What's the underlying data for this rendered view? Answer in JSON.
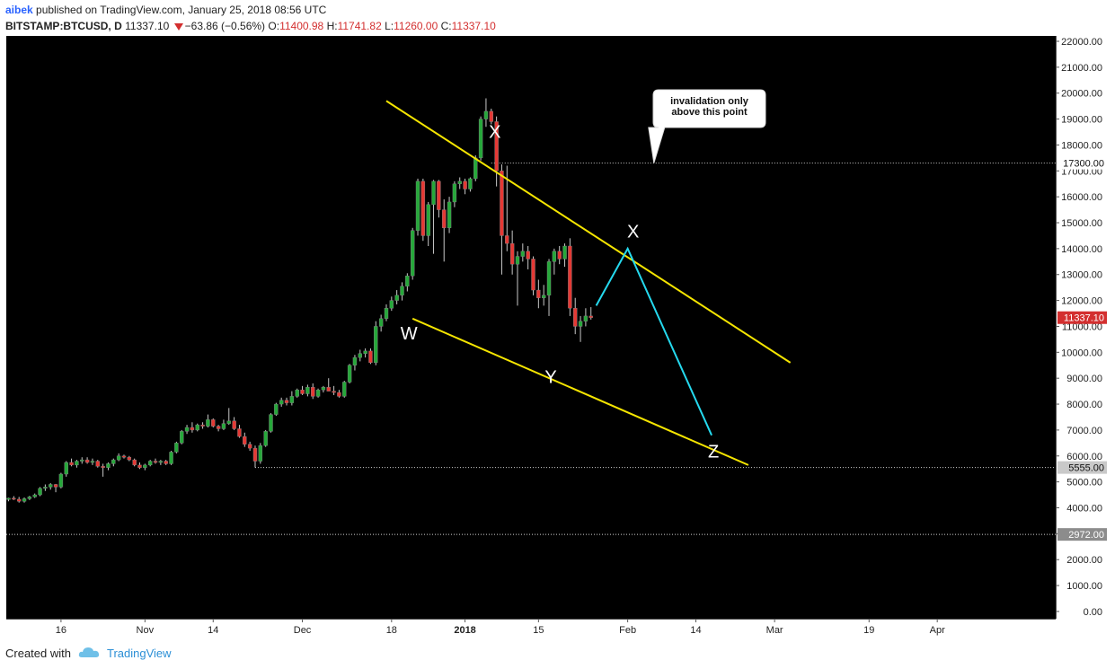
{
  "header": {
    "author": "aibek",
    "published": "published on TradingView.com, January 25, 2018 08:56 UTC",
    "symbol": "BITSTAMP:BTCUSD, D",
    "last": "11337.10",
    "change": "−63.86 (−0.56%)",
    "o_label": "O:",
    "o_val": "11400.98",
    "h_label": "H:",
    "h_val": "11741.82",
    "l_label": "L:",
    "l_val": "11260.00",
    "c_label": "C:",
    "c_val": "11337.10"
  },
  "footer": {
    "created_with": "Created with",
    "brand": "TradingView"
  },
  "colors": {
    "bg": "#000000",
    "up": "#26a83a",
    "down": "#e53935",
    "trend": "#f5e500",
    "projection": "#25d9ee",
    "price_badge": "#d32f2f"
  },
  "chart_data": {
    "type": "candlestick",
    "symbol": "BITSTAMP:BTCUSD",
    "interval": "D",
    "y_ticks": [
      0,
      1000,
      2000,
      3000,
      4000,
      5000,
      6000,
      7000,
      8000,
      9000,
      10000,
      11000,
      12000,
      13000,
      14000,
      15000,
      16000,
      17000,
      18000,
      19000,
      20000,
      21000,
      22000
    ],
    "y_tick_labels": [
      "0.00",
      "1000.00",
      "2000.00",
      "3000.00",
      "4000.00",
      "5000.00",
      "6000.00",
      "7000.00",
      "8000.00",
      "9000.00",
      "10000.00",
      "11000.00",
      "12000.00",
      "13000.00",
      "14000.00",
      "15000.00",
      "16000.00",
      "17000.00",
      "18000.00",
      "19000.00",
      "20000.00",
      "21000.00",
      "22000.00"
    ],
    "ylim": [
      0,
      22000
    ],
    "x_ticks": [
      {
        "label": "16",
        "date": "2017-10-16"
      },
      {
        "label": "Nov",
        "date": "2017-11-01"
      },
      {
        "label": "14",
        "date": "2017-11-14"
      },
      {
        "label": "Dec",
        "date": "2017-12-01"
      },
      {
        "label": "18",
        "date": "2017-12-18"
      },
      {
        "label": "2018",
        "date": "2018-01-01"
      },
      {
        "label": "15",
        "date": "2018-01-15"
      },
      {
        "label": "Feb",
        "date": "2018-02-01"
      },
      {
        "label": "14",
        "date": "2018-02-14"
      },
      {
        "label": "Mar",
        "date": "2018-03-01"
      },
      {
        "label": "19",
        "date": "2018-03-19"
      },
      {
        "label": "Apr",
        "date": "2018-04-01"
      }
    ],
    "candles": [
      [
        "2017-10-06",
        4320,
        4390,
        4250,
        4370
      ],
      [
        "2017-10-07",
        4370,
        4450,
        4300,
        4330
      ],
      [
        "2017-10-08",
        4330,
        4420,
        4200,
        4250
      ],
      [
        "2017-10-09",
        4250,
        4400,
        4200,
        4350
      ],
      [
        "2017-10-10",
        4350,
        4460,
        4300,
        4420
      ],
      [
        "2017-10-11",
        4420,
        4550,
        4380,
        4500
      ],
      [
        "2017-10-12",
        4500,
        4800,
        4450,
        4750
      ],
      [
        "2017-10-13",
        4750,
        4900,
        4650,
        4800
      ],
      [
        "2017-10-14",
        4800,
        4950,
        4700,
        4900
      ],
      [
        "2017-10-15",
        4900,
        4920,
        4600,
        4800
      ],
      [
        "2017-10-16",
        4800,
        5350,
        4750,
        5300
      ],
      [
        "2017-10-17",
        5300,
        5800,
        5200,
        5750
      ],
      [
        "2017-10-18",
        5750,
        5900,
        5600,
        5650
      ],
      [
        "2017-10-19",
        5650,
        5850,
        5550,
        5800
      ],
      [
        "2017-10-20",
        5800,
        5950,
        5700,
        5850
      ],
      [
        "2017-10-21",
        5850,
        5950,
        5700,
        5750
      ],
      [
        "2017-10-22",
        5750,
        5900,
        5650,
        5800
      ],
      [
        "2017-10-23",
        5800,
        5850,
        5550,
        5600
      ],
      [
        "2017-10-24",
        5600,
        5700,
        5200,
        5550
      ],
      [
        "2017-10-25",
        5550,
        5750,
        5450,
        5700
      ],
      [
        "2017-10-26",
        5700,
        5900,
        5600,
        5850
      ],
      [
        "2017-10-27",
        5850,
        6100,
        5800,
        6000
      ],
      [
        "2017-10-28",
        6000,
        6050,
        5900,
        5950
      ],
      [
        "2017-10-29",
        5950,
        6000,
        5800,
        5850
      ],
      [
        "2017-10-30",
        5850,
        5900,
        5600,
        5650
      ],
      [
        "2017-10-31",
        5650,
        5750,
        5500,
        5550
      ],
      [
        "2017-11-01",
        5550,
        5700,
        5450,
        5650
      ],
      [
        "2017-11-02",
        5650,
        5850,
        5600,
        5800
      ],
      [
        "2017-11-03",
        5800,
        5900,
        5700,
        5750
      ],
      [
        "2017-11-04",
        5750,
        5850,
        5650,
        5800
      ],
      [
        "2017-11-05",
        5800,
        5850,
        5650,
        5700
      ],
      [
        "2017-11-06",
        5700,
        6200,
        5650,
        6150
      ],
      [
        "2017-11-07",
        6150,
        6550,
        6100,
        6500
      ],
      [
        "2017-11-08",
        6500,
        7000,
        6450,
        6950
      ],
      [
        "2017-11-09",
        6950,
        7200,
        6850,
        7100
      ],
      [
        "2017-11-10",
        7100,
        7300,
        6900,
        7000
      ],
      [
        "2017-11-11",
        7000,
        7250,
        6950,
        7200
      ],
      [
        "2017-11-12",
        7200,
        7300,
        7050,
        7150
      ],
      [
        "2017-11-13",
        7150,
        7600,
        7100,
        7400
      ],
      [
        "2017-11-14",
        7400,
        7450,
        7100,
        7150
      ],
      [
        "2017-11-15",
        7150,
        7200,
        6950,
        7050
      ],
      [
        "2017-11-16",
        7050,
        7400,
        7000,
        7250
      ],
      [
        "2017-11-17",
        7250,
        7850,
        7200,
        7350
      ],
      [
        "2017-11-18",
        7350,
        7500,
        7000,
        7050
      ],
      [
        "2017-11-19",
        7050,
        7200,
        6700,
        6750
      ],
      [
        "2017-11-20",
        6750,
        6900,
        6350,
        6450
      ],
      [
        "2017-11-21",
        6450,
        6550,
        6200,
        6300
      ],
      [
        "2017-11-22",
        6300,
        6400,
        5555,
        5800
      ],
      [
        "2017-11-23",
        5800,
        6500,
        5700,
        6400
      ],
      [
        "2017-11-24",
        6400,
        7000,
        6350,
        6950
      ],
      [
        "2017-11-25",
        6950,
        7650,
        6900,
        7600
      ],
      [
        "2017-11-26",
        7600,
        8050,
        7550,
        8000
      ],
      [
        "2017-11-27",
        8000,
        8250,
        7900,
        8150
      ],
      [
        "2017-11-28",
        8150,
        8250,
        7950,
        8050
      ],
      [
        "2017-11-29",
        8050,
        8500,
        7950,
        8300
      ],
      [
        "2017-11-30",
        8300,
        8600,
        8250,
        8550
      ],
      [
        "2017-12-01",
        8550,
        8700,
        8350,
        8400
      ],
      [
        "2017-12-02",
        8400,
        8750,
        8300,
        8650
      ],
      [
        "2017-12-03",
        8650,
        8800,
        8200,
        8300
      ],
      [
        "2017-12-04",
        8300,
        8600,
        8250,
        8550
      ],
      [
        "2017-12-05",
        8550,
        8700,
        8450,
        8650
      ],
      [
        "2017-12-06",
        8650,
        9000,
        8500,
        8500
      ],
      [
        "2017-12-07",
        8500,
        8700,
        8350,
        8450
      ],
      [
        "2017-12-08",
        8450,
        8550,
        8250,
        8300
      ],
      [
        "2017-12-09",
        8300,
        8900,
        8250,
        8850
      ],
      [
        "2017-12-10",
        8850,
        9550,
        8800,
        9500
      ],
      [
        "2017-12-11",
        9500,
        9900,
        9300,
        9800
      ],
      [
        "2017-12-12",
        9800,
        10100,
        9650,
        9950
      ],
      [
        "2017-12-13",
        9950,
        10150,
        9800,
        10050
      ],
      [
        "2017-12-14",
        10050,
        10150,
        9550,
        9600
      ],
      [
        "2017-12-15",
        9600,
        11200,
        9500,
        11000
      ],
      [
        "2017-12-16",
        11000,
        11450,
        10800,
        11300
      ],
      [
        "2017-12-17",
        11300,
        11850,
        11200,
        11700
      ],
      [
        "2017-12-18",
        11700,
        12150,
        11600,
        12000
      ],
      [
        "2017-12-19",
        12000,
        12400,
        11850,
        12200
      ],
      [
        "2017-12-20",
        12200,
        12700,
        12000,
        12550
      ],
      [
        "2017-12-21",
        12550,
        13050,
        12350,
        12950
      ],
      [
        "2017-12-22",
        12950,
        14800,
        12800,
        14700
      ],
      [
        "2017-12-23",
        14700,
        16700,
        14500,
        16600
      ],
      [
        "2017-12-24",
        16600,
        16700,
        14300,
        14500
      ],
      [
        "2017-12-25",
        14500,
        15800,
        14100,
        15700
      ],
      [
        "2017-12-26",
        15700,
        16650,
        13800,
        16600
      ],
      [
        "2017-12-27",
        16600,
        16650,
        15200,
        15500
      ],
      [
        "2017-12-28",
        15500,
        15900,
        13500,
        14800
      ],
      [
        "2017-12-29",
        14800,
        16000,
        14600,
        15800
      ],
      [
        "2017-12-30",
        15800,
        16600,
        15600,
        16500
      ],
      [
        "2017-12-31",
        16500,
        16750,
        16300,
        16600
      ],
      [
        "2018-01-01",
        16600,
        16700,
        16100,
        16300
      ],
      [
        "2018-01-02",
        16300,
        16750,
        16200,
        16700
      ],
      [
        "2018-01-03",
        16700,
        17600,
        16600,
        17500
      ],
      [
        "2018-01-04",
        17500,
        19100,
        17400,
        19000
      ],
      [
        "2018-01-05",
        19000,
        19800,
        18700,
        19300
      ],
      [
        "2018-01-06",
        19300,
        19400,
        18800,
        18900
      ],
      [
        "2018-01-07",
        18900,
        19100,
        16400,
        17000
      ],
      [
        "2018-01-08",
        17000,
        17250,
        13000,
        14500
      ],
      [
        "2018-01-09",
        14500,
        17200,
        13900,
        14200
      ],
      [
        "2018-01-10",
        14200,
        14700,
        13000,
        13400
      ],
      [
        "2018-01-11",
        13400,
        13900,
        11800,
        13700
      ],
      [
        "2018-01-12",
        13700,
        14200,
        13500,
        13900
      ],
      [
        "2018-01-13",
        13900,
        14100,
        13200,
        13600
      ],
      [
        "2018-01-14",
        13600,
        13700,
        12200,
        12400
      ],
      [
        "2018-01-15",
        12400,
        12800,
        11700,
        12100
      ],
      [
        "2018-01-16",
        12100,
        12600,
        11800,
        12200
      ],
      [
        "2018-01-17",
        12200,
        13600,
        11400,
        13500
      ],
      [
        "2018-01-18",
        13500,
        14000,
        13000,
        13900
      ],
      [
        "2018-01-19",
        13900,
        14100,
        13400,
        13600
      ],
      [
        "2018-01-20",
        13600,
        14200,
        13300,
        14100
      ],
      [
        "2018-01-21",
        14100,
        14400,
        11400,
        11700
      ],
      [
        "2018-01-22",
        11700,
        12100,
        10700,
        11000
      ],
      [
        "2018-01-23",
        11000,
        11400,
        10400,
        11200
      ],
      [
        "2018-01-24",
        11200,
        11700,
        11000,
        11400
      ],
      [
        "2018-01-25",
        11400.98,
        11741.82,
        11260,
        11337.1
      ]
    ],
    "horizontal_levels": [
      {
        "value": 17300,
        "label": "17300.00"
      },
      {
        "value": 5555,
        "label": "5555.00"
      },
      {
        "value": 2972,
        "label": "2972.00"
      }
    ],
    "last_price": {
      "value": 11337.1,
      "label": "11337.10"
    },
    "wave_labels": [
      {
        "text": "W",
        "date": "2017-12-22",
        "price": 11300
      },
      {
        "text": "X",
        "date": "2018-01-06",
        "price": 18000
      },
      {
        "text": "Y",
        "date": "2018-01-17",
        "price": 9400
      },
      {
        "text": "X",
        "date": "2018-02-01",
        "price": 14050
      },
      {
        "text": "Z",
        "date": "2018-02-17",
        "price": 6700
      }
    ],
    "trendlines": [
      {
        "name": "upper",
        "from": {
          "date": "2017-12-17",
          "price": 19700
        },
        "to": {
          "date": "2018-03-04",
          "price": 9600
        }
      },
      {
        "name": "lower",
        "from": {
          "date": "2017-12-22",
          "price": 11300
        },
        "to": {
          "date": "2018-02-24",
          "price": 5650
        }
      }
    ],
    "projection_path": [
      {
        "date": "2018-01-26",
        "price": 11800
      },
      {
        "date": "2018-02-01",
        "price": 14000
      },
      {
        "date": "2018-02-17",
        "price": 6800
      }
    ],
    "callout": {
      "lines": [
        "invalidation only",
        "above this point"
      ],
      "date": "2018-02-06",
      "price": 17300
    }
  }
}
